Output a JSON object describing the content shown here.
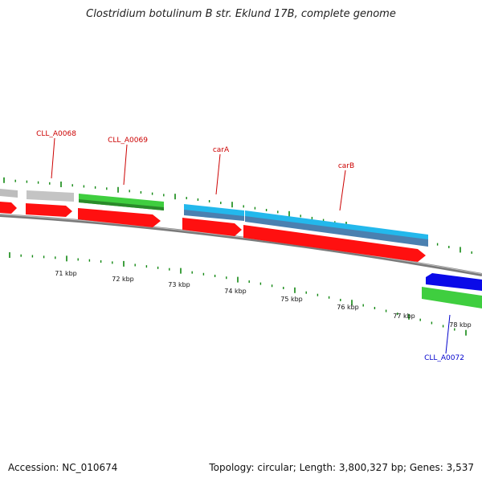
{
  "title": "Clostridium botulinum B str. Eklund 17B, complete genome",
  "footer": {
    "accession": "Accession: NC_010674",
    "summary": "Topology: circular; Length: 3,800,327 bp; Genes: 3,537"
  },
  "colors": {
    "cds": "#ff0000",
    "gene_green": "#33cc33",
    "gene_gray": "#bbbbbb",
    "gene_cyan": "#22bbee",
    "gene_blue": "#0000ee",
    "label_red": "#cc0000",
    "label_blue": "#0000cc",
    "tick_green": "#118811",
    "backbone": "#808080"
  },
  "scale_labels": [
    "71 kbp",
    "72 kbp",
    "73 kbp",
    "74 kbp",
    "75 kbp",
    "76 kbp",
    "77 kbp",
    "78 kbp"
  ],
  "gene_labels": [
    {
      "name": "CLL_A0068",
      "color": "red"
    },
    {
      "name": "CLL_A0069",
      "color": "red"
    },
    {
      "name": "carA",
      "color": "red"
    },
    {
      "name": "carB",
      "color": "red"
    },
    {
      "name": "CLL_A0072",
      "color": "blue"
    }
  ]
}
